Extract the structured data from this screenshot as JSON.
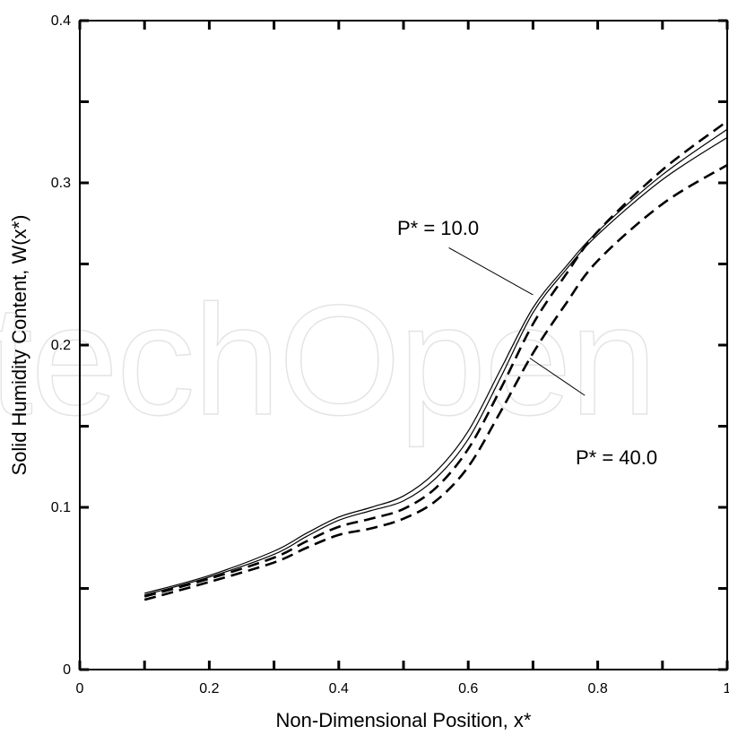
{
  "chart_data": {
    "type": "line",
    "title": "",
    "xlabel": "Non-Dimensional Position, x*",
    "ylabel": "Solid Humidity Content, W(x*)",
    "xlim": [
      0,
      1
    ],
    "ylim": [
      0,
      0.4
    ],
    "x_ticks": [
      0,
      0.2,
      0.4,
      0.6,
      0.8,
      1
    ],
    "x_tick_labels": [
      "0",
      "0.2",
      "0.4",
      "0.6",
      "0.8",
      "1"
    ],
    "y_ticks": [
      0,
      0.1,
      0.2,
      0.3,
      0.4
    ],
    "y_tick_labels": [
      "0",
      "0.1",
      "0.2",
      "0.3",
      "0.4"
    ],
    "grid": false,
    "series": [
      {
        "style": "solid",
        "x": [
          0.1,
          0.2,
          0.3,
          0.35,
          0.4,
          0.45,
          0.5,
          0.55,
          0.6,
          0.65,
          0.7,
          0.75,
          0.8,
          0.9,
          1.0
        ],
        "y": [
          0.047,
          0.058,
          0.073,
          0.084,
          0.094,
          0.1,
          0.107,
          0.122,
          0.147,
          0.185,
          0.223,
          0.248,
          0.27,
          0.305,
          0.333
        ]
      },
      {
        "style": "solid",
        "x": [
          0.1,
          0.2,
          0.3,
          0.35,
          0.4,
          0.45,
          0.5,
          0.55,
          0.6,
          0.65,
          0.7,
          0.75,
          0.8,
          0.9,
          1.0
        ],
        "y": [
          0.046,
          0.057,
          0.071,
          0.082,
          0.092,
          0.098,
          0.104,
          0.118,
          0.142,
          0.18,
          0.22,
          0.246,
          0.268,
          0.302,
          0.328
        ]
      },
      {
        "style": "dashed",
        "x": [
          0.1,
          0.2,
          0.3,
          0.35,
          0.4,
          0.45,
          0.5,
          0.55,
          0.6,
          0.65,
          0.7,
          0.75,
          0.8,
          0.9,
          1.0
        ],
        "y": [
          0.045,
          0.056,
          0.069,
          0.079,
          0.088,
          0.093,
          0.099,
          0.112,
          0.136,
          0.173,
          0.213,
          0.243,
          0.27,
          0.308,
          0.338
        ]
      },
      {
        "style": "dashed",
        "x": [
          0.1,
          0.2,
          0.3,
          0.35,
          0.4,
          0.45,
          0.5,
          0.55,
          0.6,
          0.65,
          0.7,
          0.75,
          0.8,
          0.9,
          1.0
        ],
        "y": [
          0.043,
          0.054,
          0.066,
          0.075,
          0.083,
          0.087,
          0.093,
          0.104,
          0.125,
          0.159,
          0.195,
          0.225,
          0.252,
          0.287,
          0.311
        ]
      }
    ],
    "annotations": [
      {
        "text": "P* = 10.0",
        "pointer_from": [
          0.57,
          0.26
        ],
        "pointer_to": [
          0.7,
          0.231
        ]
      },
      {
        "text": "P* = 40.0",
        "pointer_from": [
          0.695,
          0.192
        ],
        "pointer_to": [
          0.78,
          0.169
        ]
      }
    ]
  },
  "watermark": {
    "text": "techOpen"
  }
}
